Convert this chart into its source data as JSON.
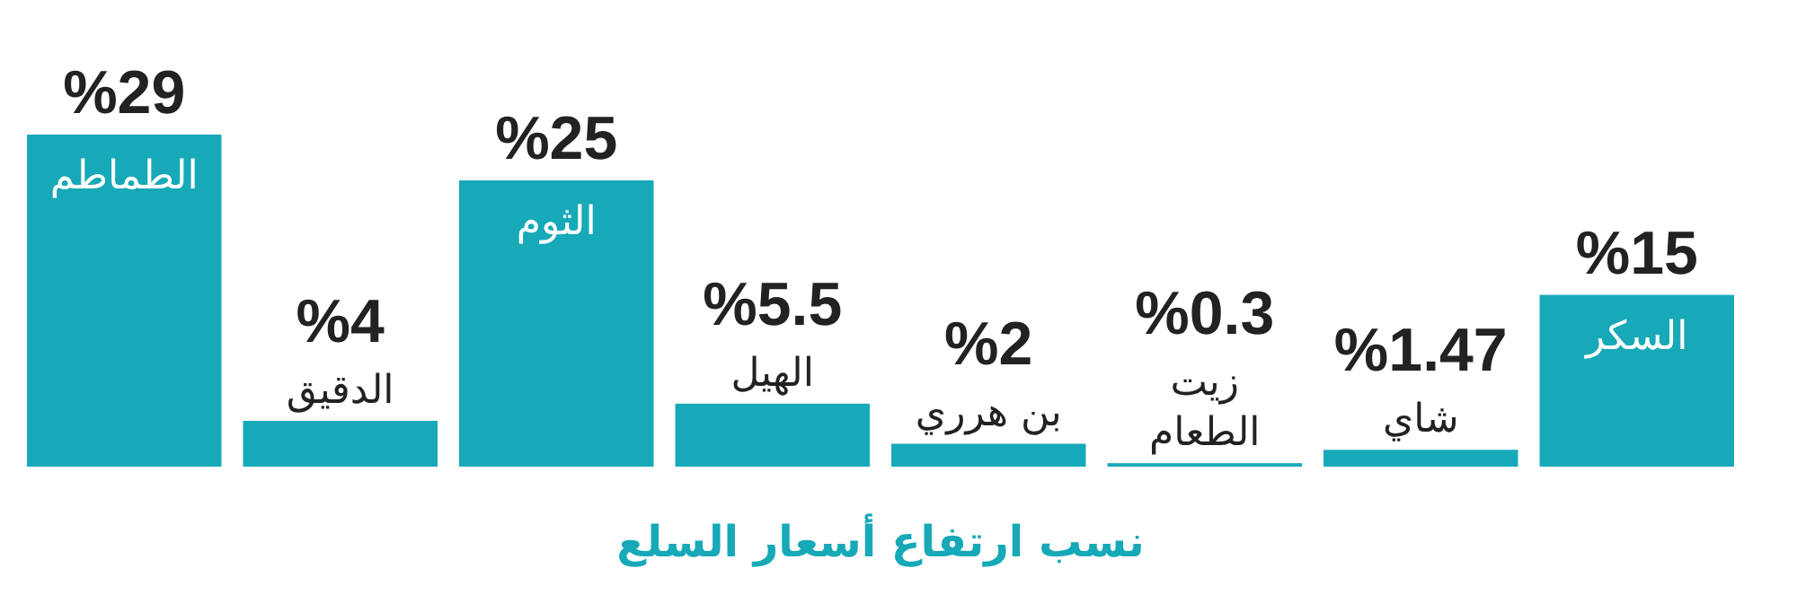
{
  "chart_data": {
    "type": "bar",
    "title": "نسب ارتفاع أسعار السلع",
    "categories": [
      "الطماطم",
      "الدقيق",
      "الثوم",
      "الهيل",
      "بن هرري",
      "زيت الطعام",
      "شاي",
      "السكر"
    ],
    "values": [
      29,
      4,
      25,
      5.5,
      2,
      0.3,
      1.47,
      15
    ],
    "value_labels": [
      "%29",
      "%4",
      "%25",
      "%5.5",
      "%2",
      "%0.3",
      "%1.47",
      "%15"
    ],
    "color": "#17a9b8"
  }
}
